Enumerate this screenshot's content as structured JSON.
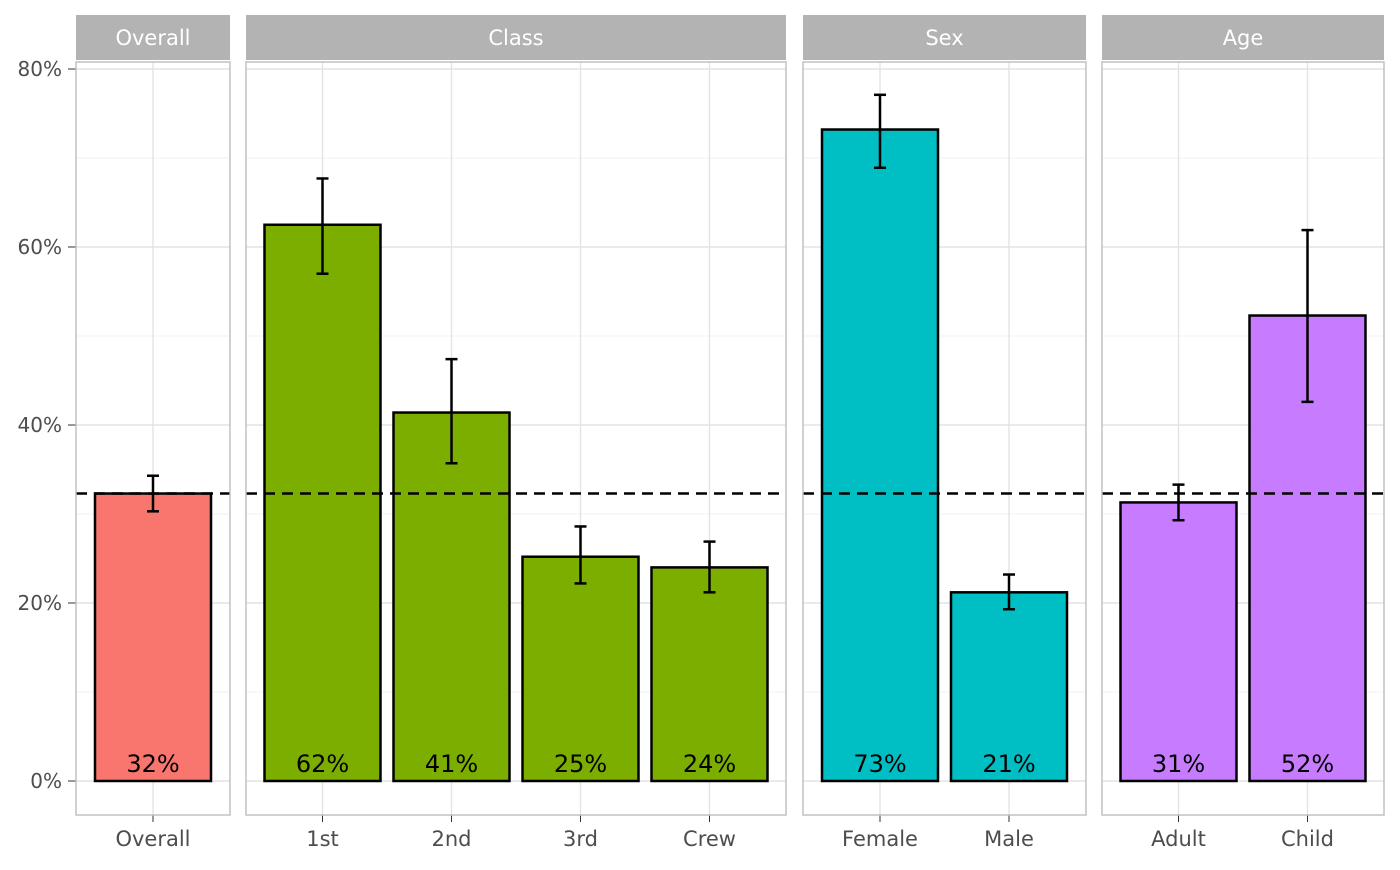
{
  "chart_data": {
    "type": "bar",
    "ylim": [
      0,
      0.8
    ],
    "y_ticks": [
      0,
      0.2,
      0.4,
      0.6,
      0.8
    ],
    "y_tick_labels": [
      "0%",
      "20%",
      "40%",
      "60%",
      "80%"
    ],
    "grid": true,
    "reference_line": {
      "value": 0.323,
      "style": "dashed"
    },
    "panels": [
      {
        "name": "Overall",
        "color": "#F8766D",
        "bars": [
          {
            "category": "Overall",
            "value": 0.323,
            "label": "32%",
            "ci_low": 0.303,
            "ci_high": 0.343
          }
        ]
      },
      {
        "name": "Class",
        "color": "#7CAE00",
        "bars": [
          {
            "category": "1st",
            "value": 0.625,
            "label": "62%",
            "ci_low": 0.57,
            "ci_high": 0.677
          },
          {
            "category": "2nd",
            "value": 0.414,
            "label": "41%",
            "ci_low": 0.357,
            "ci_high": 0.474
          },
          {
            "category": "3rd",
            "value": 0.252,
            "label": "25%",
            "ci_low": 0.222,
            "ci_high": 0.286
          },
          {
            "category": "Crew",
            "value": 0.24,
            "label": "24%",
            "ci_low": 0.212,
            "ci_high": 0.269
          }
        ]
      },
      {
        "name": "Sex",
        "color": "#00BFC4",
        "bars": [
          {
            "category": "Female",
            "value": 0.732,
            "label": "73%",
            "ci_low": 0.689,
            "ci_high": 0.771
          },
          {
            "category": "Male",
            "value": 0.212,
            "label": "21%",
            "ci_low": 0.193,
            "ci_high": 0.232
          }
        ]
      },
      {
        "name": "Age",
        "color": "#C77CFF",
        "bars": [
          {
            "category": "Adult",
            "value": 0.313,
            "label": "31%",
            "ci_low": 0.293,
            "ci_high": 0.333
          },
          {
            "category": "Child",
            "value": 0.523,
            "label": "52%",
            "ci_low": 0.426,
            "ci_high": 0.619
          }
        ]
      }
    ]
  }
}
